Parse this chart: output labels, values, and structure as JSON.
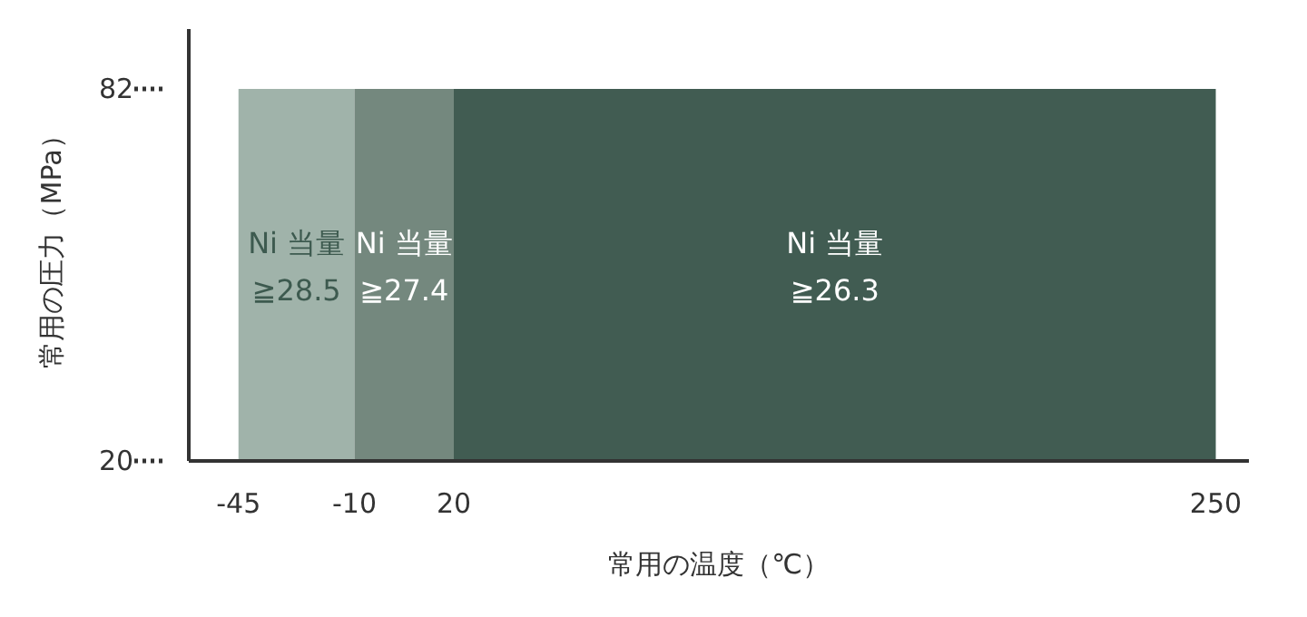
{
  "chart_data": {
    "type": "area",
    "xlabel": "常用の温度（℃）",
    "ylabel": "常用の圧力（MPa）",
    "xlim": [
      -60,
      260
    ],
    "xticks": [
      -45,
      -10,
      20,
      250
    ],
    "ylim": [
      20,
      92
    ],
    "yticks": [
      20,
      82
    ],
    "series": [
      {
        "name": "Ni 当量 ≧28.5",
        "color": "#a0b3aa",
        "x": [
          -45,
          -10
        ],
        "values": [
          82,
          82
        ]
      },
      {
        "name": "Ni 当量 ≧27.4",
        "color": "#74887e",
        "x": [
          -10,
          20
        ],
        "values": [
          82,
          82
        ]
      },
      {
        "name": "Ni 当量 ≧26.3",
        "color": "#415c52",
        "x": [
          20,
          250
        ],
        "values": [
          82,
          82
        ]
      }
    ]
  }
}
